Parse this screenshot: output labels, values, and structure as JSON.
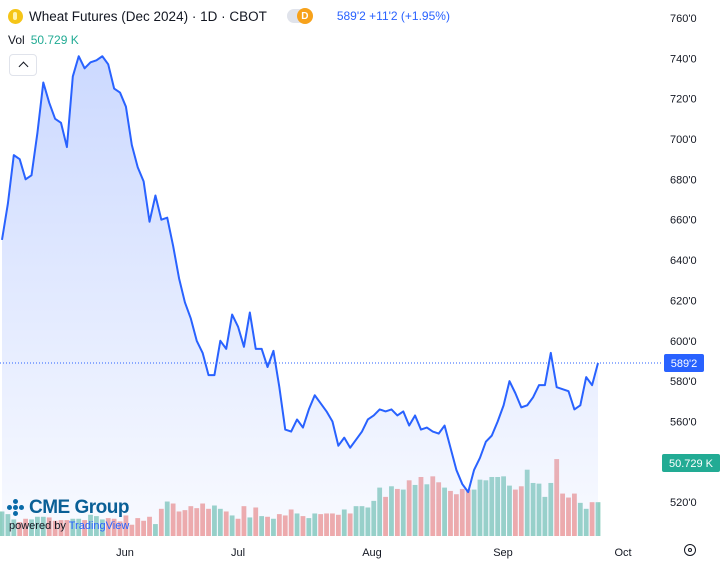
{
  "header": {
    "symbol_icon": "wheat-coin-icon",
    "title": "Wheat Futures (Dec 2024) · 1D · CBOT",
    "badge": "D",
    "price_change": "589'2 +11'2 (+1.95%)"
  },
  "volume": {
    "label": "Vol",
    "value": "50.729 K"
  },
  "branding": {
    "logo": "CME Group",
    "powered_prefix": "powered by",
    "powered_brand": "TradingView"
  },
  "colors": {
    "line": "#2962ff",
    "area": "#c9d7ff",
    "vol_up": "#8fcfc1",
    "vol_down": "#f2a3a0",
    "last_price_tag": "#2962ff",
    "vol_tag": "#22ab94"
  },
  "chart_data": {
    "type": "area",
    "price_unit": "cents/bushel",
    "y_ticks": [
      "760'0",
      "740'0",
      "720'0",
      "700'0",
      "680'0",
      "660'0",
      "640'0",
      "620'0",
      "600'0",
      "580'0",
      "560'0",
      "540'0",
      "520'0"
    ],
    "x_ticks": [
      "Jun",
      "Jul",
      "Aug",
      "Sep",
      "Oct"
    ],
    "last_price_label": "589'2",
    "volume_label": "50.729 K",
    "series": [
      {
        "values": [
          650,
          668,
          692,
          690,
          680,
          682,
          703,
          728,
          718,
          710,
          708,
          696,
          731,
          741,
          735,
          738,
          739,
          741,
          737,
          725,
          723,
          716,
          697,
          686,
          679,
          659,
          672,
          660,
          661,
          647,
          631,
          619,
          611,
          600,
          594,
          583,
          583,
          600,
          596,
          613,
          607,
          597,
          614,
          596,
          596,
          587,
          595,
          577,
          556,
          555,
          561,
          557,
          566,
          573,
          569,
          565,
          560,
          548,
          552,
          547,
          551,
          555,
          561,
          563,
          566,
          565,
          566,
          563,
          565,
          558,
          563,
          556,
          557,
          555,
          554,
          558,
          547,
          536,
          529,
          525,
          536,
          542,
          550,
          553,
          560,
          568,
          580,
          574,
          567,
          568,
          572,
          578,
          578,
          594,
          577,
          576,
          575,
          566,
          568,
          582,
          578,
          589
        ]
      },
      {
        "values": [
          37,
          33,
          25,
          21,
          26,
          25,
          29,
          29,
          28,
          23,
          24,
          24,
          26,
          26,
          24,
          32,
          30,
          25,
          27,
          26,
          22,
          31,
          17,
          27,
          23,
          29,
          18,
          41,
          52,
          49,
          37,
          39,
          45,
          42,
          49,
          41,
          46,
          41,
          37,
          31,
          26,
          45,
          28,
          43,
          30,
          29,
          26,
          33,
          31,
          40,
          34,
          30,
          27,
          34,
          33,
          34,
          34,
          32,
          40,
          34,
          45,
          45,
          43,
          53,
          73,
          59,
          75,
          71,
          70,
          84,
          77,
          89,
          78,
          90,
          81,
          73,
          68,
          63,
          71,
          70,
          70,
          85,
          84,
          89,
          89,
          90,
          76,
          70,
          75,
          100,
          80,
          79,
          59,
          80,
          116,
          64,
          58,
          64,
          50,
          41,
          51,
          51
        ]
      }
    ]
  }
}
